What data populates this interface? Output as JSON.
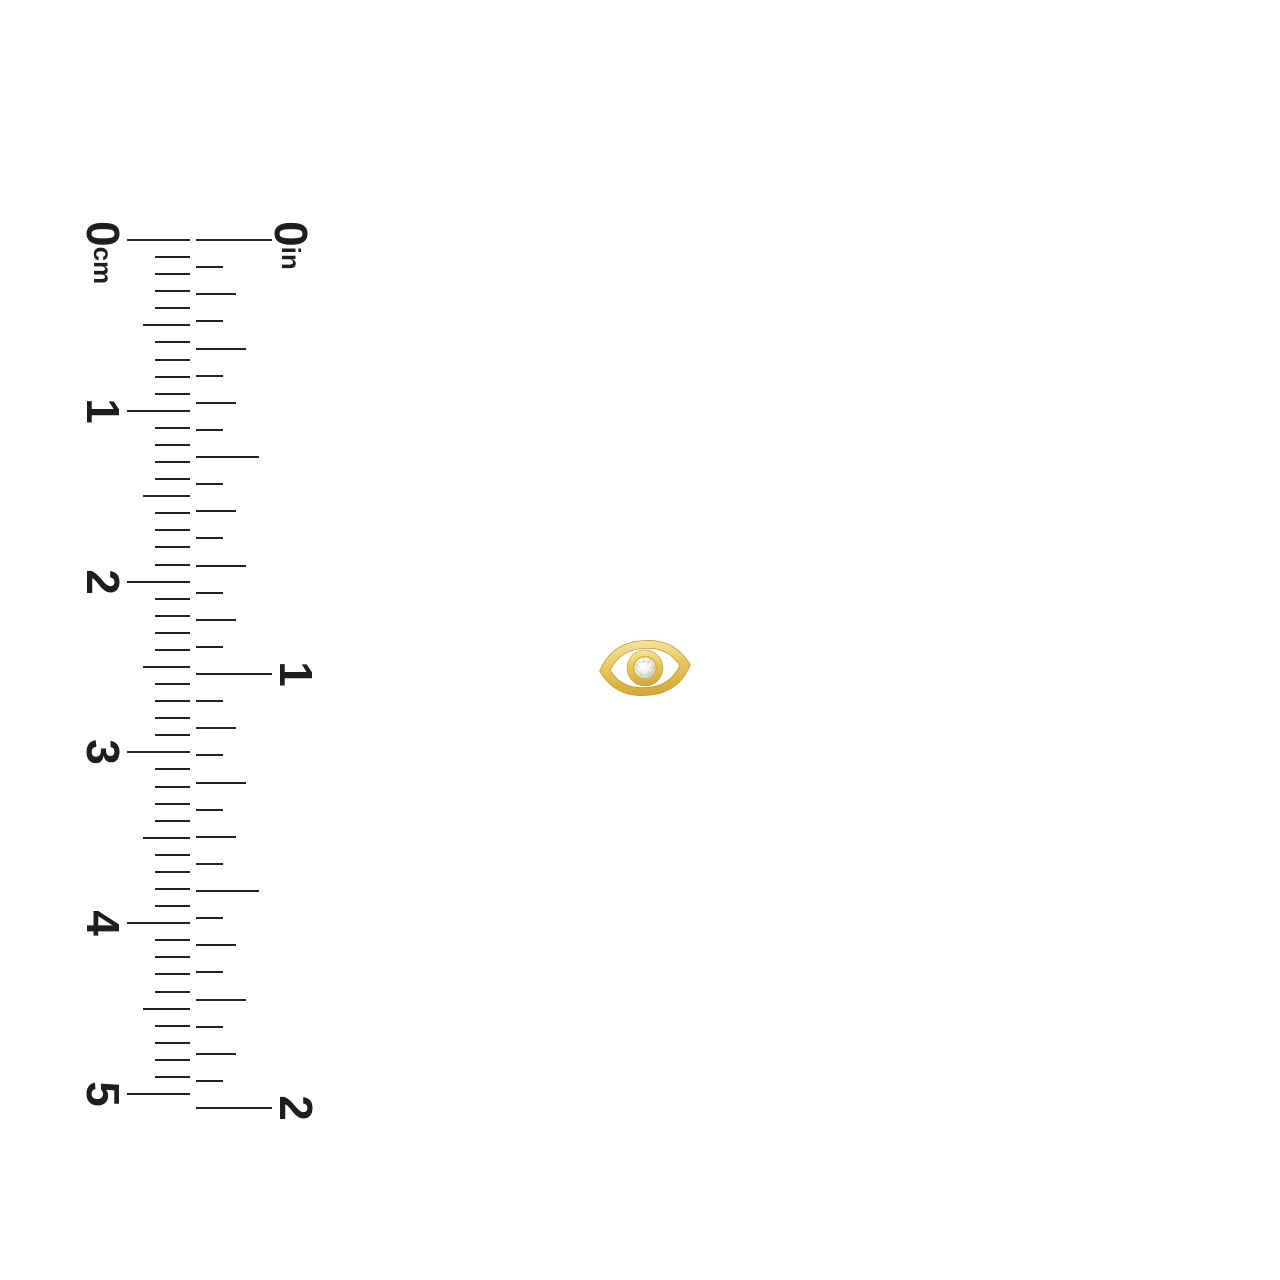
{
  "page": {
    "background": "#ffffff"
  },
  "ruler": {
    "tick_color": "#232323",
    "label_color": "#1e1e1e",
    "cm_scale": {
      "zero_label": "0",
      "unit_label": "cm",
      "numbers": [
        "1",
        "2",
        "3",
        "4",
        "5"
      ],
      "total_cm": 5,
      "ticks_per_cm": 10
    },
    "inch_scale": {
      "zero_label": "0",
      "unit_label": "in",
      "numbers": [
        "1",
        "2"
      ],
      "total_inches": 2,
      "ticks_per_inch": 16
    }
  },
  "product": {
    "name": "gold-evil-eye-diamond-stud",
    "colors": {
      "gold_light": "#f5e29d",
      "gold": "#eac95c",
      "gold_dark": "#d2a536",
      "gold_edge": "#c0952f",
      "bezel_rim": "#d8b44a",
      "diamond_center": "#ffffff",
      "diamond": "#f0f3ea",
      "diamond_facet": "#b9c1b0"
    }
  }
}
